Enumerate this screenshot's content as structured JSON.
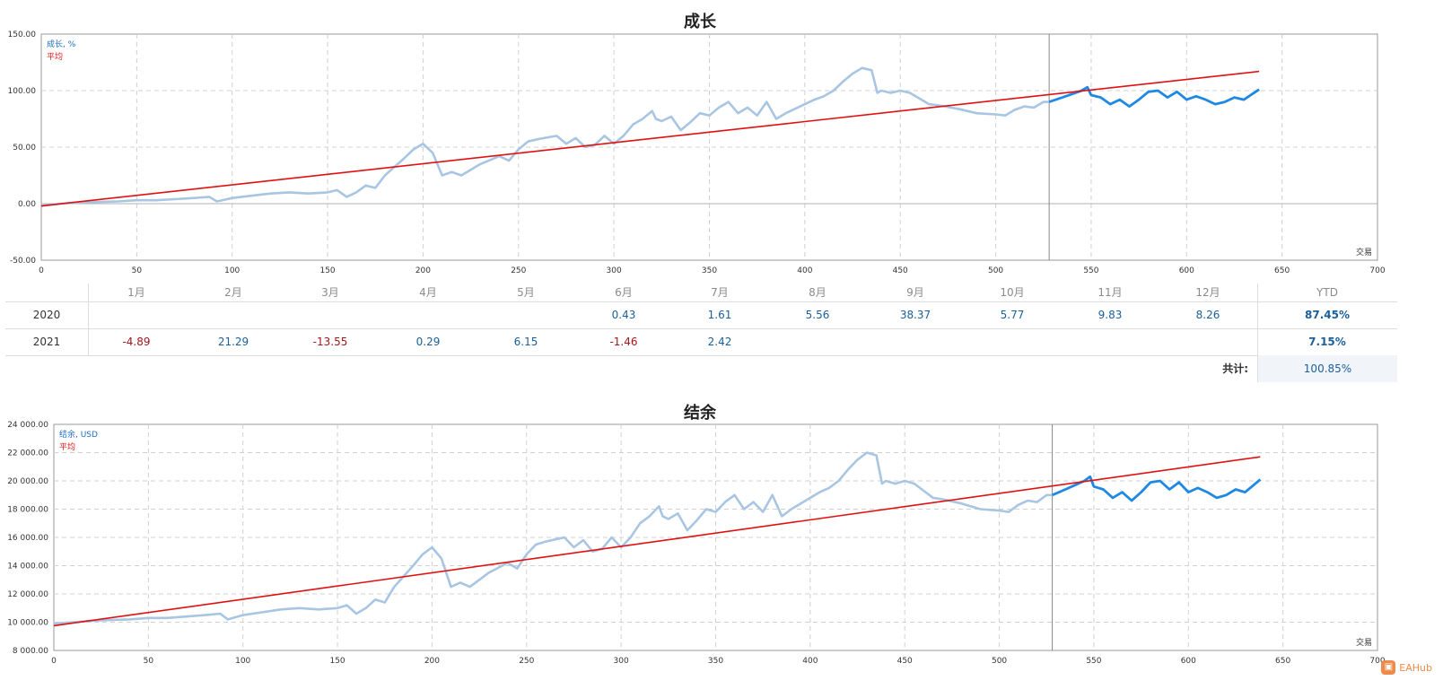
{
  "chart_data": [
    {
      "type": "line",
      "title": "成长",
      "legend": [
        "成长, %",
        "平均"
      ],
      "xlabel": "交易",
      "ylabel": "",
      "xlim": [
        0,
        700
      ],
      "ylim": [
        -50,
        150
      ],
      "x_ticks": [
        0,
        50,
        100,
        150,
        200,
        250,
        300,
        350,
        400,
        450,
        500,
        550,
        600,
        650,
        700
      ],
      "y_ticks": [
        "150.00",
        "100.00",
        "50.00",
        "0.00",
        "-50.00"
      ],
      "y_tick_values": [
        150,
        100,
        50,
        0,
        -50
      ],
      "split_x": 528,
      "grid": true,
      "legend_position": "top-left",
      "series": [
        {
          "name": "成长, %",
          "color": "#a8c5e2",
          "highlight_color": "#1e88e5",
          "x": [
            0,
            10,
            20,
            30,
            40,
            50,
            60,
            70,
            80,
            88,
            92,
            100,
            110,
            120,
            130,
            140,
            150,
            155,
            160,
            165,
            170,
            175,
            180,
            190,
            195,
            200,
            205,
            210,
            215,
            220,
            225,
            230,
            240,
            245,
            250,
            255,
            260,
            270,
            275,
            280,
            285,
            290,
            295,
            300,
            305,
            310,
            315,
            320,
            322,
            325,
            330,
            335,
            340,
            345,
            350,
            355,
            360,
            365,
            370,
            375,
            380,
            385,
            390,
            395,
            400,
            405,
            410,
            415,
            420,
            425,
            430,
            435,
            438,
            440,
            445,
            450,
            455,
            460,
            465,
            470,
            480,
            490,
            500,
            505,
            510,
            515,
            520,
            525,
            528,
            535,
            540,
            545,
            548,
            550,
            555,
            560,
            565,
            570,
            575,
            580,
            585,
            590,
            595,
            600,
            605,
            610,
            615,
            620,
            625,
            630,
            638
          ],
          "values": [
            -2,
            0,
            1,
            1.5,
            2,
            3,
            3,
            4,
            5,
            6,
            2,
            5,
            7,
            9,
            10,
            9,
            10,
            12,
            6,
            10,
            16,
            14,
            25,
            40,
            48,
            53,
            45,
            25,
            28,
            25,
            30,
            35,
            42,
            38,
            48,
            55,
            57,
            60,
            53,
            58,
            50,
            52,
            60,
            53,
            60,
            70,
            75,
            82,
            75,
            73,
            77,
            65,
            72,
            80,
            78,
            85,
            90,
            80,
            85,
            78,
            90,
            75,
            80,
            84,
            88,
            92,
            95,
            100,
            108,
            115,
            120,
            118,
            98,
            100,
            98,
            100,
            98,
            93,
            88,
            87,
            84,
            80,
            79,
            78,
            83,
            86,
            85,
            90,
            90,
            94,
            97,
            100,
            103,
            96,
            94,
            88,
            92,
            86,
            92,
            99,
            100,
            94,
            99,
            92,
            95,
            92,
            88,
            90,
            94,
            92,
            101
          ]
        },
        {
          "name": "平均",
          "color": "#e01010",
          "x": [
            0,
            638
          ],
          "values": [
            -2,
            117
          ]
        }
      ]
    },
    {
      "type": "line",
      "title": "结余",
      "legend": [
        "结余, USD",
        "平均"
      ],
      "xlabel": "交易",
      "ylabel": "",
      "xlim": [
        0,
        700
      ],
      "ylim": [
        8000,
        24000
      ],
      "x_ticks": [
        0,
        50,
        100,
        150,
        200,
        250,
        300,
        350,
        400,
        450,
        500,
        550,
        600,
        650,
        700
      ],
      "y_ticks": [
        "24 000.00",
        "22 000.00",
        "20 000.00",
        "18 000.00",
        "16 000.00",
        "14 000.00",
        "12 000.00",
        "10 000.00",
        "8 000.00"
      ],
      "y_tick_values": [
        24000,
        22000,
        20000,
        18000,
        16000,
        14000,
        12000,
        10000,
        8000
      ],
      "split_x": 528,
      "grid": true,
      "legend_position": "top-left",
      "series": [
        {
          "name": "结余, USD",
          "color": "#a8c5e2",
          "highlight_color": "#1e88e5",
          "x": [
            0,
            10,
            20,
            30,
            40,
            50,
            60,
            70,
            80,
            88,
            92,
            100,
            110,
            120,
            130,
            140,
            150,
            155,
            160,
            165,
            170,
            175,
            180,
            190,
            195,
            200,
            205,
            210,
            215,
            220,
            225,
            230,
            240,
            245,
            250,
            255,
            260,
            270,
            275,
            280,
            285,
            290,
            295,
            300,
            305,
            310,
            315,
            320,
            322,
            325,
            330,
            335,
            340,
            345,
            350,
            355,
            360,
            365,
            370,
            375,
            380,
            385,
            390,
            395,
            400,
            405,
            410,
            415,
            420,
            425,
            430,
            435,
            438,
            440,
            445,
            450,
            455,
            460,
            465,
            470,
            480,
            490,
            500,
            505,
            510,
            515,
            520,
            525,
            528,
            535,
            540,
            545,
            548,
            550,
            555,
            560,
            565,
            570,
            575,
            580,
            585,
            590,
            595,
            600,
            605,
            610,
            615,
            620,
            625,
            630,
            638
          ],
          "values": [
            9900,
            10000,
            10100,
            10150,
            10200,
            10300,
            10300,
            10400,
            10500,
            10600,
            10200,
            10500,
            10700,
            10900,
            11000,
            10900,
            11000,
            11200,
            10600,
            11000,
            11600,
            11400,
            12500,
            14000,
            14800,
            15300,
            14500,
            12500,
            12800,
            12500,
            13000,
            13500,
            14200,
            13800,
            14800,
            15500,
            15700,
            16000,
            15300,
            15800,
            15000,
            15200,
            16000,
            15300,
            16000,
            17000,
            17500,
            18200,
            17500,
            17300,
            17700,
            16500,
            17200,
            18000,
            17800,
            18500,
            19000,
            18000,
            18500,
            17800,
            19000,
            17500,
            18000,
            18400,
            18800,
            19200,
            19500,
            20000,
            20800,
            21500,
            22000,
            21800,
            19800,
            20000,
            19800,
            20000,
            19800,
            19300,
            18800,
            18700,
            18400,
            18000,
            17900,
            17800,
            18300,
            18600,
            18500,
            19000,
            19000,
            19400,
            19700,
            20000,
            20300,
            19600,
            19400,
            18800,
            19200,
            18600,
            19200,
            19900,
            20000,
            19400,
            19900,
            19200,
            19500,
            19200,
            18800,
            19000,
            19400,
            19200,
            20100
          ]
        },
        {
          "name": "平均",
          "color": "#e01010",
          "x": [
            0,
            638
          ],
          "values": [
            9750,
            21700
          ]
        }
      ]
    }
  ],
  "returns": {
    "months": [
      "1月",
      "2月",
      "3月",
      "4月",
      "5月",
      "6月",
      "7月",
      "8月",
      "9月",
      "10月",
      "11月",
      "12月"
    ],
    "ytd_header": "YTD",
    "rows": [
      {
        "year": "2020",
        "cells": [
          "",
          "",
          "",
          "",
          "",
          "0.43",
          "1.61",
          "5.56",
          "38.37",
          "5.77",
          "9.83",
          "8.26"
        ],
        "ytd": "87.45%"
      },
      {
        "year": "2021",
        "cells": [
          "-4.89",
          "21.29",
          "-13.55",
          "0.29",
          "6.15",
          "-1.46",
          "2.42",
          "",
          "",
          "",
          "",
          ""
        ],
        "ytd": "7.15%"
      }
    ],
    "total_label": "共计:",
    "total_value": "100.85%"
  },
  "watermark": {
    "text": "EAHub",
    "logo_icon": "eahub-logo-icon"
  }
}
